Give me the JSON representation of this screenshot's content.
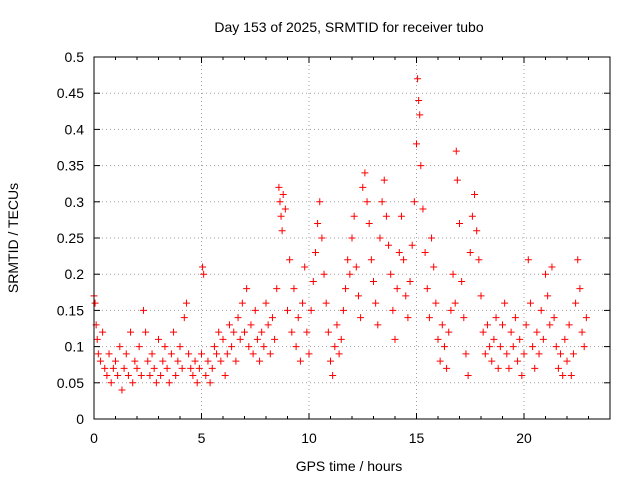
{
  "chart_data": {
    "type": "scatter",
    "title": "Day 153 of 2025, SRMTID for receiver tubo",
    "xlabel": "GPS time / hours",
    "ylabel": "SRMTID / TECUs",
    "xlim": [
      0,
      24
    ],
    "ylim": [
      0,
      0.5
    ],
    "grid": true,
    "marker": "+",
    "x_ticks": [
      0,
      5,
      10,
      15,
      20
    ],
    "y_ticks": [
      0,
      0.05,
      0.1,
      0.15,
      0.2,
      0.25,
      0.3,
      0.35,
      0.4,
      0.45,
      0.5
    ],
    "x_tick_labels": [
      "0",
      "5",
      "10",
      "15",
      "20"
    ],
    "y_tick_labels": [
      "0",
      "0.05",
      "0.1",
      "0.15",
      "0.2",
      "0.25",
      "0.3",
      "0.35",
      "0.4",
      "0.45",
      "0.5"
    ],
    "colors": {
      "series": "#ff0000",
      "grid": "#a0a0a0",
      "axis": "#000000"
    },
    "series": [
      {
        "name": "SRMTID",
        "points": [
          [
            0.0,
            0.17
          ],
          [
            0.05,
            0.16
          ],
          [
            0.1,
            0.13
          ],
          [
            0.15,
            0.11
          ],
          [
            0.2,
            0.09
          ],
          [
            0.3,
            0.08
          ],
          [
            0.4,
            0.12
          ],
          [
            0.5,
            0.07
          ],
          [
            0.6,
            0.06
          ],
          [
            0.7,
            0.09
          ],
          [
            0.8,
            0.05
          ],
          [
            0.9,
            0.07
          ],
          [
            1.0,
            0.08
          ],
          [
            1.1,
            0.06
          ],
          [
            1.2,
            0.1
          ],
          [
            1.3,
            0.04
          ],
          [
            1.4,
            0.07
          ],
          [
            1.5,
            0.09
          ],
          [
            1.6,
            0.06
          ],
          [
            1.7,
            0.12
          ],
          [
            1.8,
            0.05
          ],
          [
            1.9,
            0.08
          ],
          [
            2.0,
            0.07
          ],
          [
            2.1,
            0.1
          ],
          [
            2.2,
            0.06
          ],
          [
            2.3,
            0.15
          ],
          [
            2.4,
            0.12
          ],
          [
            2.5,
            0.08
          ],
          [
            2.6,
            0.06
          ],
          [
            2.7,
            0.09
          ],
          [
            2.8,
            0.07
          ],
          [
            2.9,
            0.05
          ],
          [
            3.0,
            0.11
          ],
          [
            3.1,
            0.06
          ],
          [
            3.2,
            0.08
          ],
          [
            3.3,
            0.1
          ],
          [
            3.4,
            0.07
          ],
          [
            3.5,
            0.05
          ],
          [
            3.6,
            0.09
          ],
          [
            3.7,
            0.12
          ],
          [
            3.8,
            0.06
          ],
          [
            3.9,
            0.08
          ],
          [
            4.0,
            0.1
          ],
          [
            4.1,
            0.07
          ],
          [
            4.2,
            0.14
          ],
          [
            4.3,
            0.16
          ],
          [
            4.4,
            0.09
          ],
          [
            4.5,
            0.07
          ],
          [
            4.6,
            0.06
          ],
          [
            4.7,
            0.08
          ],
          [
            4.8,
            0.05
          ],
          [
            4.9,
            0.07
          ],
          [
            5.0,
            0.09
          ],
          [
            5.05,
            0.21
          ],
          [
            5.1,
            0.2
          ],
          [
            5.2,
            0.06
          ],
          [
            5.3,
            0.08
          ],
          [
            5.4,
            0.05
          ],
          [
            5.5,
            0.07
          ],
          [
            5.6,
            0.1
          ],
          [
            5.7,
            0.09
          ],
          [
            5.8,
            0.12
          ],
          [
            5.9,
            0.08
          ],
          [
            6.0,
            0.11
          ],
          [
            6.1,
            0.06
          ],
          [
            6.2,
            0.09
          ],
          [
            6.3,
            0.13
          ],
          [
            6.4,
            0.1
          ],
          [
            6.5,
            0.12
          ],
          [
            6.6,
            0.08
          ],
          [
            6.7,
            0.14
          ],
          [
            6.8,
            0.11
          ],
          [
            6.9,
            0.16
          ],
          [
            7.0,
            0.12
          ],
          [
            7.1,
            0.18
          ],
          [
            7.2,
            0.1
          ],
          [
            7.3,
            0.13
          ],
          [
            7.4,
            0.09
          ],
          [
            7.5,
            0.15
          ],
          [
            7.6,
            0.11
          ],
          [
            7.7,
            0.08
          ],
          [
            7.8,
            0.12
          ],
          [
            7.9,
            0.1
          ],
          [
            8.0,
            0.16
          ],
          [
            8.1,
            0.13
          ],
          [
            8.2,
            0.09
          ],
          [
            8.3,
            0.14
          ],
          [
            8.4,
            0.11
          ],
          [
            8.5,
            0.18
          ],
          [
            8.6,
            0.32
          ],
          [
            8.65,
            0.3
          ],
          [
            8.7,
            0.28
          ],
          [
            8.75,
            0.26
          ],
          [
            8.8,
            0.31
          ],
          [
            8.9,
            0.29
          ],
          [
            9.0,
            0.15
          ],
          [
            9.1,
            0.22
          ],
          [
            9.2,
            0.12
          ],
          [
            9.3,
            0.18
          ],
          [
            9.4,
            0.1
          ],
          [
            9.5,
            0.14
          ],
          [
            9.6,
            0.08
          ],
          [
            9.7,
            0.16
          ],
          [
            9.8,
            0.21
          ],
          [
            9.9,
            0.12
          ],
          [
            10.0,
            0.09
          ],
          [
            10.1,
            0.15
          ],
          [
            10.2,
            0.19
          ],
          [
            10.3,
            0.23
          ],
          [
            10.4,
            0.27
          ],
          [
            10.5,
            0.3
          ],
          [
            10.6,
            0.25
          ],
          [
            10.7,
            0.2
          ],
          [
            10.8,
            0.16
          ],
          [
            10.9,
            0.12
          ],
          [
            11.0,
            0.08
          ],
          [
            11.1,
            0.06
          ],
          [
            11.2,
            0.1
          ],
          [
            11.3,
            0.13
          ],
          [
            11.4,
            0.09
          ],
          [
            11.5,
            0.11
          ],
          [
            11.6,
            0.15
          ],
          [
            11.7,
            0.18
          ],
          [
            11.8,
            0.22
          ],
          [
            11.9,
            0.2
          ],
          [
            12.0,
            0.25
          ],
          [
            12.1,
            0.28
          ],
          [
            12.2,
            0.21
          ],
          [
            12.3,
            0.17
          ],
          [
            12.4,
            0.14
          ],
          [
            12.5,
            0.32
          ],
          [
            12.6,
            0.34
          ],
          [
            12.7,
            0.3
          ],
          [
            12.8,
            0.27
          ],
          [
            12.9,
            0.22
          ],
          [
            13.0,
            0.19
          ],
          [
            13.1,
            0.16
          ],
          [
            13.2,
            0.13
          ],
          [
            13.3,
            0.25
          ],
          [
            13.4,
            0.3
          ],
          [
            13.5,
            0.33
          ],
          [
            13.6,
            0.28
          ],
          [
            13.7,
            0.24
          ],
          [
            13.8,
            0.2
          ],
          [
            13.9,
            0.15
          ],
          [
            14.0,
            0.11
          ],
          [
            14.1,
            0.18
          ],
          [
            14.2,
            0.23
          ],
          [
            14.3,
            0.28
          ],
          [
            14.4,
            0.22
          ],
          [
            14.5,
            0.17
          ],
          [
            14.6,
            0.14
          ],
          [
            14.7,
            0.19
          ],
          [
            14.8,
            0.24
          ],
          [
            14.9,
            0.3
          ],
          [
            15.0,
            0.38
          ],
          [
            15.05,
            0.47
          ],
          [
            15.1,
            0.44
          ],
          [
            15.15,
            0.42
          ],
          [
            15.2,
            0.35
          ],
          [
            15.3,
            0.29
          ],
          [
            15.4,
            0.23
          ],
          [
            15.5,
            0.18
          ],
          [
            15.6,
            0.14
          ],
          [
            15.7,
            0.25
          ],
          [
            15.8,
            0.21
          ],
          [
            15.9,
            0.16
          ],
          [
            16.0,
            0.11
          ],
          [
            16.1,
            0.08
          ],
          [
            16.2,
            0.13
          ],
          [
            16.3,
            0.1
          ],
          [
            16.4,
            0.07
          ],
          [
            16.5,
            0.12
          ],
          [
            16.6,
            0.15
          ],
          [
            16.7,
            0.2
          ],
          [
            16.8,
            0.16
          ],
          [
            16.85,
            0.37
          ],
          [
            16.9,
            0.33
          ],
          [
            17.0,
            0.27
          ],
          [
            17.1,
            0.19
          ],
          [
            17.2,
            0.14
          ],
          [
            17.3,
            0.09
          ],
          [
            17.4,
            0.06
          ],
          [
            17.5,
            0.23
          ],
          [
            17.6,
            0.28
          ],
          [
            17.7,
            0.31
          ],
          [
            17.8,
            0.26
          ],
          [
            17.9,
            0.22
          ],
          [
            18.0,
            0.17
          ],
          [
            18.1,
            0.12
          ],
          [
            18.2,
            0.09
          ],
          [
            18.3,
            0.13
          ],
          [
            18.4,
            0.1
          ],
          [
            18.5,
            0.08
          ],
          [
            18.6,
            0.11
          ],
          [
            18.7,
            0.14
          ],
          [
            18.8,
            0.07
          ],
          [
            18.9,
            0.1
          ],
          [
            19.0,
            0.13
          ],
          [
            19.1,
            0.16
          ],
          [
            19.2,
            0.09
          ],
          [
            19.3,
            0.07
          ],
          [
            19.4,
            0.12
          ],
          [
            19.5,
            0.1
          ],
          [
            19.6,
            0.14
          ],
          [
            19.7,
            0.08
          ],
          [
            19.8,
            0.11
          ],
          [
            19.9,
            0.06
          ],
          [
            20.0,
            0.09
          ],
          [
            20.1,
            0.13
          ],
          [
            20.2,
            0.22
          ],
          [
            20.3,
            0.16
          ],
          [
            20.4,
            0.1
          ],
          [
            20.5,
            0.07
          ],
          [
            20.6,
            0.12
          ],
          [
            20.7,
            0.09
          ],
          [
            20.8,
            0.15
          ],
          [
            20.9,
            0.11
          ],
          [
            21.0,
            0.2
          ],
          [
            21.1,
            0.17
          ],
          [
            21.2,
            0.13
          ],
          [
            21.3,
            0.21
          ],
          [
            21.4,
            0.14
          ],
          [
            21.5,
            0.1
          ],
          [
            21.6,
            0.07
          ],
          [
            21.7,
            0.09
          ],
          [
            21.8,
            0.06
          ],
          [
            21.9,
            0.11
          ],
          [
            22.0,
            0.08
          ],
          [
            22.1,
            0.13
          ],
          [
            22.2,
            0.06
          ],
          [
            22.3,
            0.09
          ],
          [
            22.4,
            0.16
          ],
          [
            22.5,
            0.22
          ],
          [
            22.6,
            0.18
          ],
          [
            22.7,
            0.12
          ],
          [
            22.8,
            0.1
          ],
          [
            22.9,
            0.14
          ]
        ]
      }
    ]
  }
}
